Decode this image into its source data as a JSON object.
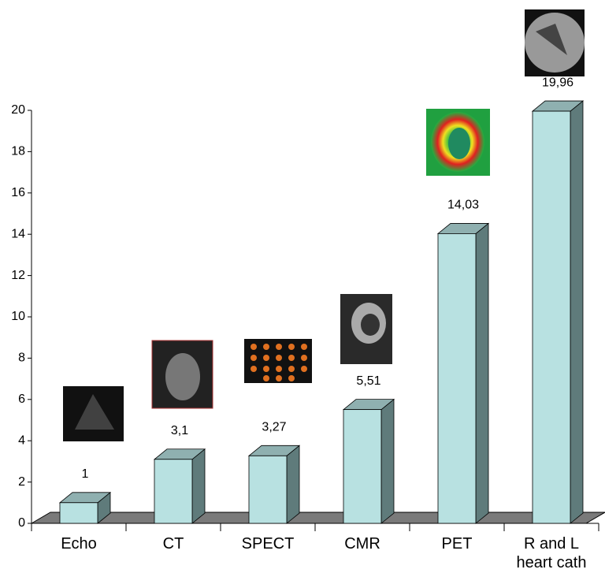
{
  "chart_data": {
    "type": "bar3d",
    "categories": [
      "Echo",
      "CT",
      "SPECT",
      "CMR",
      "PET",
      "R and L heart cath"
    ],
    "values": [
      1,
      3.1,
      3.27,
      5.51,
      14.03,
      19.96
    ],
    "value_labels": [
      "1",
      "3,1",
      "3,27",
      "5,51",
      "14,03",
      "19,96"
    ],
    "color": "#b8e1e1",
    "ylim": [
      0,
      20
    ],
    "yticks": [
      0,
      2,
      4,
      6,
      8,
      10,
      12,
      14,
      16,
      18,
      20
    ]
  }
}
